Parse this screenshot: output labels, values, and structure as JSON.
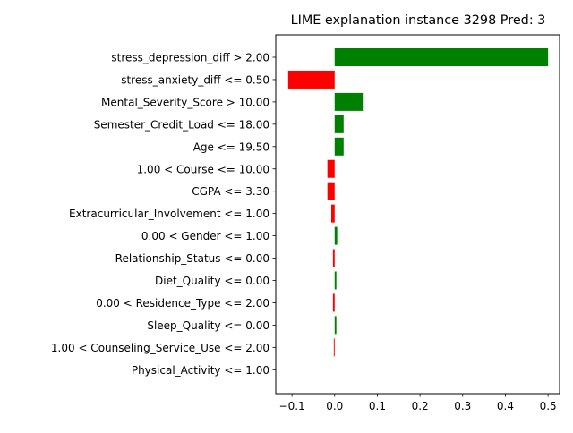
{
  "chart_data": {
    "type": "bar",
    "orientation": "horizontal",
    "title": "LIME explanation instance 3298 Pred: 3",
    "xlabel": "",
    "ylabel": "",
    "xlim": [
      -0.138,
      0.527
    ],
    "xticks": [
      -0.1,
      0.0,
      0.1,
      0.2,
      0.3,
      0.4,
      0.5
    ],
    "xtick_labels": [
      "−0.1",
      "0.0",
      "0.1",
      "0.2",
      "0.3",
      "0.4",
      "0.5"
    ],
    "grid": false,
    "legend": "none",
    "colors": {
      "positive": "#008000",
      "negative": "#ff0000"
    },
    "categories": [
      "stress_depression_diff > 2.00",
      "stress_anxiety_diff <= 0.50",
      "Mental_Severity_Score > 10.00",
      "Semester_Credit_Load <= 18.00",
      "Age <= 19.50",
      "1.00 < Course <= 10.00",
      "CGPA <= 3.30",
      "Extracurricular_Involvement <= 1.00",
      "0.00 < Gender <= 1.00",
      "Relationship_Status <= 0.00",
      "Diet_Quality <= 0.00",
      "0.00 < Residence_Type <= 2.00",
      "Sleep_Quality <= 0.00",
      "1.00 < Counseling_Service_Use <= 2.00",
      "Physical_Activity <= 1.00"
    ],
    "values": [
      0.5,
      -0.109,
      0.068,
      0.021,
      0.021,
      -0.017,
      -0.017,
      -0.008,
      0.006,
      -0.004,
      0.004,
      -0.004,
      0.004,
      -0.002,
      0.0
    ]
  }
}
